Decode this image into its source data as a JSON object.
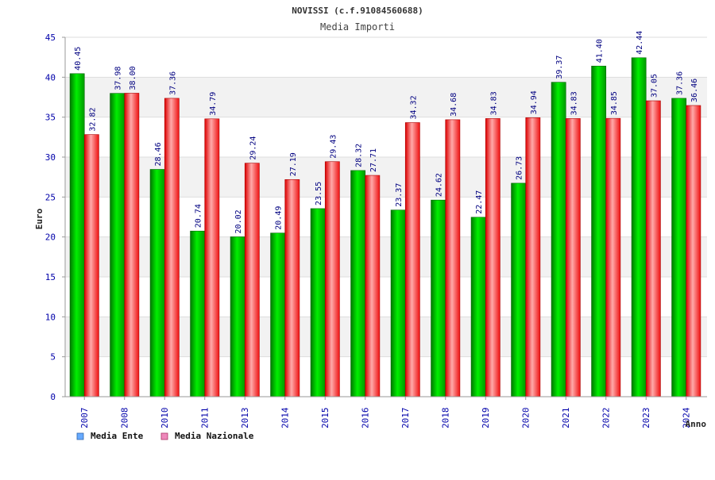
{
  "chart_data": {
    "type": "bar",
    "title": "NOVISSI (c.f.91084560688)",
    "subtitle": "Media Importi",
    "xlabel": "Anno",
    "ylabel": "Euro",
    "ylim": [
      0,
      45
    ],
    "yticks": [
      0,
      5,
      10,
      15,
      20,
      25,
      30,
      35,
      40,
      45
    ],
    "grid": "horizontal bands",
    "legend_position": "bottom-left",
    "categories": [
      "2007",
      "2008",
      "2010",
      "2011",
      "2013",
      "2014",
      "2015",
      "2016",
      "2017",
      "2018",
      "2019",
      "2020",
      "2021",
      "2022",
      "2023",
      "2024"
    ],
    "series": [
      {
        "name": "Media Ente",
        "color": "#00cc00",
        "legend_color": "#66aaff",
        "values": [
          40.45,
          37.98,
          28.46,
          20.74,
          20.02,
          20.49,
          23.55,
          28.32,
          23.37,
          24.62,
          22.47,
          26.73,
          39.37,
          41.4,
          42.44,
          37.36
        ],
        "labels": [
          "40.45",
          "37.98",
          "28.46",
          "20.74",
          "20.02",
          "20.49",
          "23.55",
          "28.32",
          "23.37",
          "24.62",
          "22.47",
          "26.73",
          "39.37",
          "41.40",
          "42.44",
          "37.36"
        ]
      },
      {
        "name": "Media Nazionale",
        "color": "#ee2222",
        "legend_color": "#ee88bb",
        "values": [
          32.82,
          38.0,
          37.36,
          34.79,
          29.24,
          27.19,
          29.43,
          27.71,
          34.32,
          34.68,
          34.83,
          34.94,
          34.83,
          34.85,
          37.05,
          36.46
        ],
        "labels": [
          "32.82",
          "38.00",
          "37.36",
          "34.79",
          "29.24",
          "27.19",
          "29.43",
          "27.71",
          "34.32",
          "34.68",
          "34.83",
          "34.94",
          "34.83",
          "34.85",
          "37.05",
          "36.46"
        ]
      }
    ]
  }
}
